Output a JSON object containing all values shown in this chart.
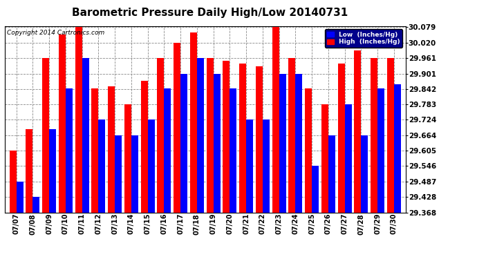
{
  "title": "Barometric Pressure Daily High/Low 20140731",
  "copyright": "Copyright 2014 Cartronics.com",
  "dates": [
    "07/07",
    "07/08",
    "07/09",
    "07/10",
    "07/11",
    "07/12",
    "07/13",
    "07/14",
    "07/15",
    "07/16",
    "07/17",
    "07/18",
    "07/19",
    "07/20",
    "07/21",
    "07/22",
    "07/23",
    "07/24",
    "07/25",
    "07/26",
    "07/27",
    "07/28",
    "07/29",
    "07/30"
  ],
  "high_values": [
    29.605,
    29.687,
    29.961,
    30.05,
    30.079,
    29.843,
    29.853,
    29.783,
    29.873,
    29.961,
    30.02,
    30.059,
    29.961,
    29.95,
    29.94,
    29.93,
    30.079,
    29.961,
    29.843,
    29.783,
    29.94,
    29.99,
    29.961,
    29.961
  ],
  "low_values": [
    29.487,
    29.428,
    29.687,
    29.843,
    29.961,
    29.724,
    29.664,
    29.665,
    29.724,
    29.843,
    29.901,
    29.961,
    29.901,
    29.843,
    29.724,
    29.724,
    29.901,
    29.901,
    29.546,
    29.664,
    29.783,
    29.664,
    29.843,
    29.861
  ],
  "high_color": "#ff0000",
  "low_color": "#0000ff",
  "background_color": "#ffffff",
  "plot_bg_color": "#ffffff",
  "grid_color": "#aaaaaa",
  "title_fontsize": 11,
  "ylim_min": 29.368,
  "ylim_max": 30.079,
  "yticks": [
    29.368,
    29.428,
    29.487,
    29.546,
    29.605,
    29.664,
    29.724,
    29.783,
    29.842,
    29.901,
    29.961,
    30.02,
    30.079
  ],
  "legend_low_label": "Low  (Inches/Hg)",
  "legend_high_label": "High  (Inches/Hg)"
}
